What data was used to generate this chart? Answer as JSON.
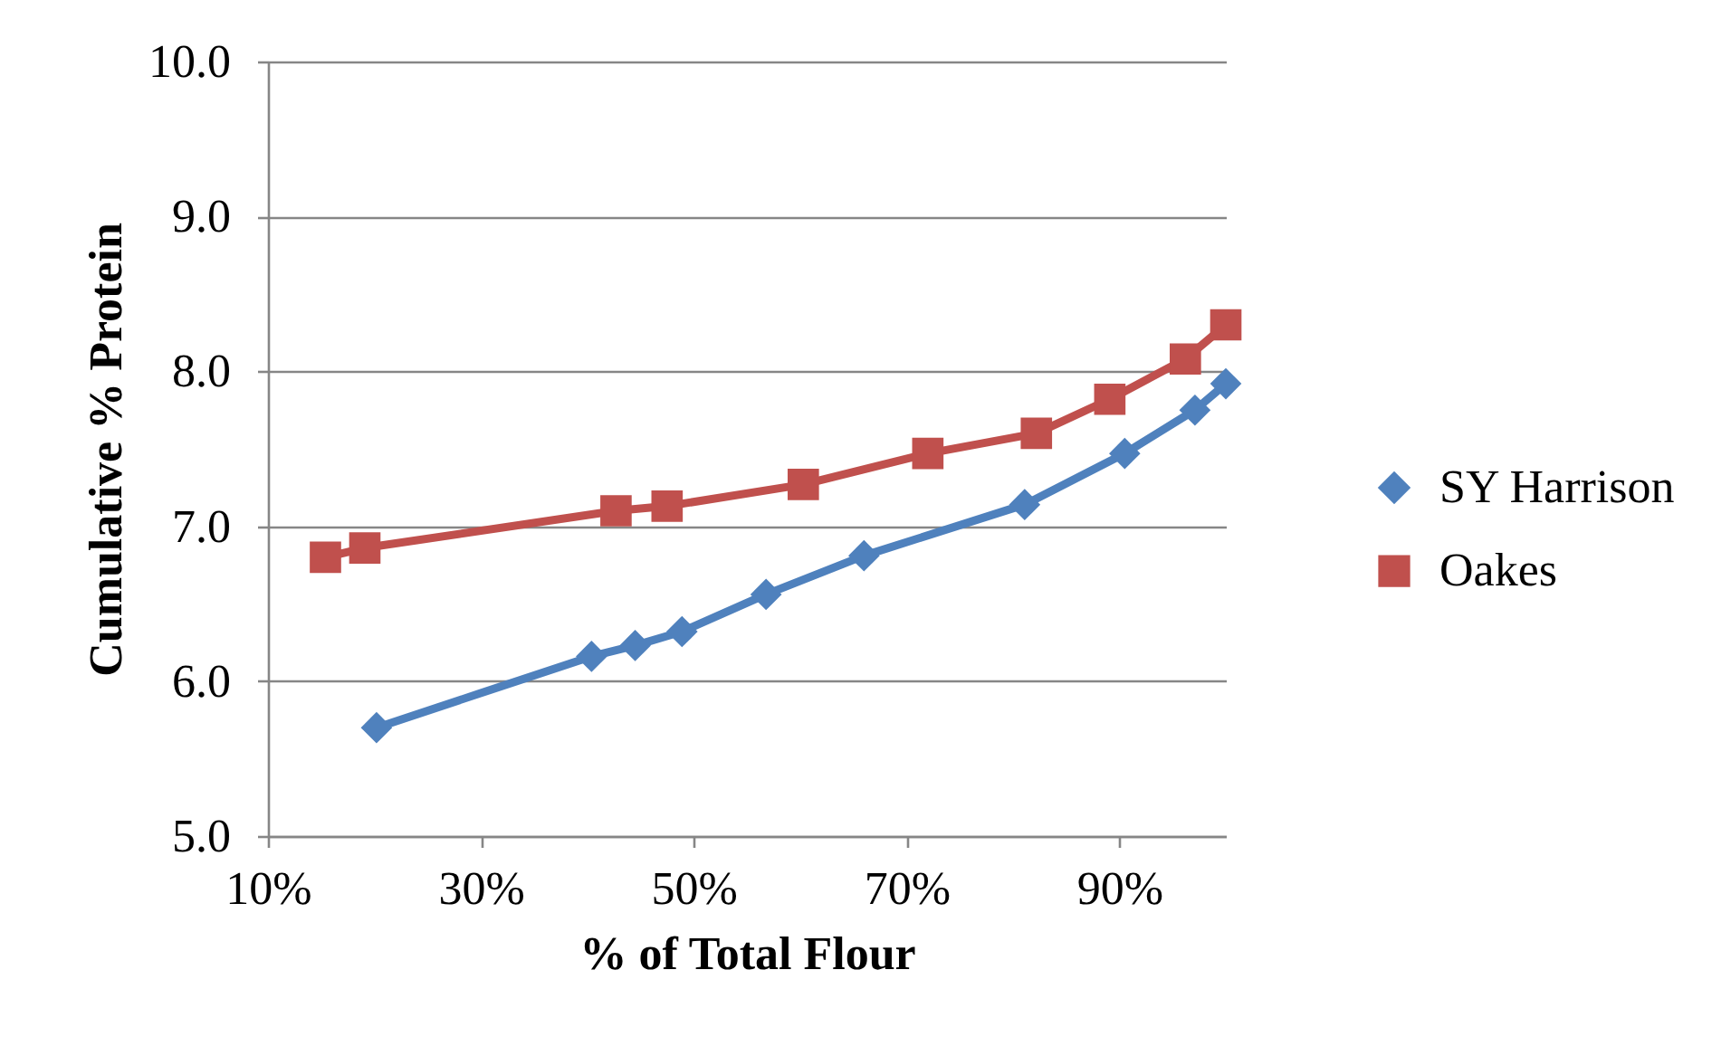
{
  "chart_data": {
    "type": "line",
    "xlabel": "% of Total Flour",
    "ylabel": "Cumulative % Protein",
    "xlim": [
      10,
      100
    ],
    "xticks": [
      {
        "value": 10,
        "label": "10%"
      },
      {
        "value": 30,
        "label": "30%"
      },
      {
        "value": 50,
        "label": "50%"
      },
      {
        "value": 70,
        "label": "70%"
      },
      {
        "value": 90,
        "label": "90%"
      }
    ],
    "ylim": [
      5,
      10
    ],
    "yticks": [
      {
        "value": 5,
        "label": "5.0"
      },
      {
        "value": 6,
        "label": "6.0"
      },
      {
        "value": 7,
        "label": "7.0"
      },
      {
        "value": 8,
        "label": "8.0"
      },
      {
        "value": 9,
        "label": "9.0"
      },
      {
        "value": 10,
        "label": "10.0"
      }
    ],
    "grid": "y",
    "legend": "right",
    "line_style": "solid",
    "series": [
      {
        "name": "SY Harrison",
        "color": "#4f81bd",
        "marker": "diamond",
        "x": [
          20.2,
          40.4,
          44.5,
          48.9,
          56.8,
          66.0,
          81.1,
          90.5,
          97.1,
          100
        ],
        "values": [
          5.7,
          6.16,
          6.23,
          6.32,
          6.56,
          6.81,
          7.14,
          7.47,
          7.75,
          7.92
        ]
      },
      {
        "name": "Oakes",
        "color": "#c0504d",
        "marker": "square",
        "x": [
          15.4,
          19.1,
          42.7,
          47.5,
          60.3,
          72.0,
          82.2,
          89.1,
          96.2,
          100
        ],
        "values": [
          6.8,
          6.86,
          7.1,
          7.13,
          7.27,
          7.47,
          7.6,
          7.82,
          8.08,
          8.3
        ]
      }
    ]
  }
}
